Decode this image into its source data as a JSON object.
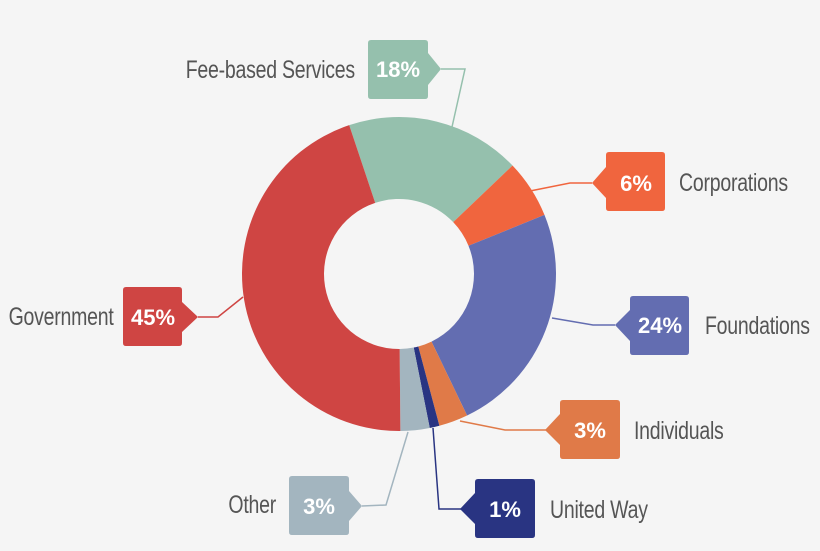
{
  "chart_data": {
    "type": "pie",
    "variant": "donut",
    "title": "",
    "unit": "%",
    "categories": [
      "Fee-based Services",
      "Corporations",
      "Foundations",
      "Individuals",
      "United Way",
      "Other",
      "Government"
    ],
    "values": [
      18,
      6,
      24,
      3,
      1,
      3,
      45
    ],
    "colors": [
      "#95c0ad",
      "#f0653e",
      "#636db1",
      "#e07a48",
      "#293482",
      "#a3b5bf",
      "#cf4543"
    ],
    "labels": {
      "fee_based": {
        "name": "Fee-based Services",
        "pct": "18%"
      },
      "corporations": {
        "name": "Corporations",
        "pct": "6%"
      },
      "foundations": {
        "name": "Foundations",
        "pct": "24%"
      },
      "individuals": {
        "name": "Individuals",
        "pct": "3%"
      },
      "united_way": {
        "name": "United Way",
        "pct": "1%"
      },
      "other": {
        "name": "Other",
        "pct": "3%"
      },
      "government": {
        "name": "Government",
        "pct": "45%"
      }
    },
    "legend_position": "callouts around chart"
  }
}
